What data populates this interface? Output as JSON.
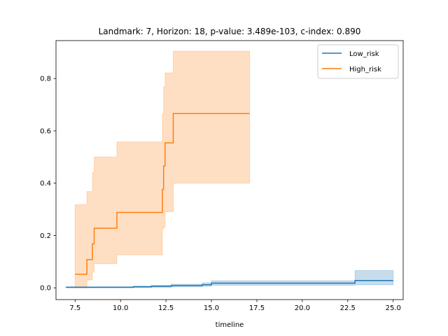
{
  "chart_data": {
    "type": "line",
    "title": "Landmark: 7, Horizon: 18, p-value: 3.489e-103, c-index: 0.890",
    "xlabel": "timeline",
    "ylabel": "",
    "xlim": [
      6.45,
      25.55
    ],
    "ylim": [
      -0.045,
      0.945
    ],
    "x_ticks": [
      7.5,
      10.0,
      12.5,
      15.0,
      17.5,
      20.0,
      22.5,
      25.0
    ],
    "x_tick_labels": [
      "7.5",
      "10.0",
      "12.5",
      "15.0",
      "17.5",
      "20.0",
      "22.5",
      "25.0"
    ],
    "y_ticks": [
      0.0,
      0.2,
      0.4,
      0.6,
      0.8
    ],
    "y_tick_labels": [
      "0.0",
      "0.2",
      "0.4",
      "0.6",
      "0.8"
    ],
    "grid": false,
    "legend_position": "top-right",
    "series": [
      {
        "name": "Low_risk",
        "color": "#1f77b4",
        "x": [
          7.0,
          10.7,
          11.7,
          12.8,
          14.5,
          15.0,
          22.9,
          25.0
        ],
        "y": [
          0.002,
          0.004,
          0.006,
          0.009,
          0.012,
          0.018,
          0.028,
          0.028
        ],
        "lower": [
          0.0,
          0.001,
          0.002,
          0.004,
          0.006,
          0.01,
          0.012,
          0.012
        ],
        "upper": [
          0.004,
          0.007,
          0.01,
          0.014,
          0.019,
          0.027,
          0.066,
          0.066
        ]
      },
      {
        "name": "High_risk",
        "color": "#ff7f0e",
        "x": [
          7.5,
          8.15,
          8.45,
          8.55,
          9.8,
          12.3,
          12.37,
          12.45,
          12.9,
          17.1
        ],
        "y": [
          0.052,
          0.108,
          0.168,
          0.228,
          0.288,
          0.376,
          0.466,
          0.554,
          0.666,
          0.666
        ],
        "lower": [
          0.0,
          0.03,
          0.06,
          0.092,
          0.126,
          0.226,
          0.232,
          0.291,
          0.4,
          0.4
        ],
        "upper": [
          0.318,
          0.368,
          0.441,
          0.5,
          0.558,
          0.664,
          0.768,
          0.822,
          0.905,
          0.905
        ]
      }
    ]
  }
}
